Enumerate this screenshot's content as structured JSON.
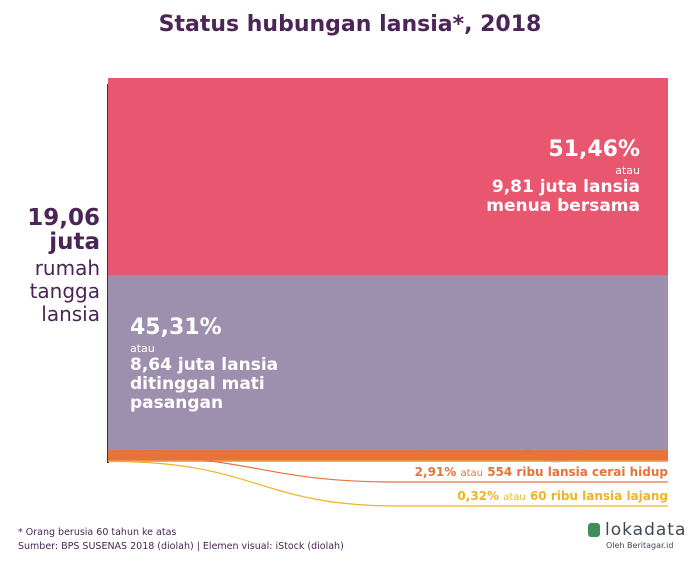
{
  "chart_data": {
    "type": "stack",
    "title": "Status hubungan lansia*, 2018",
    "total_lines": [
      "19,06",
      "juta"
    ],
    "total_text_lines": [
      "rumah",
      "tangga",
      "lansia"
    ],
    "connector": "atau",
    "series": [
      {
        "name": "9,81 juta lansia menua bersama",
        "values": [
          51.46
        ],
        "value_labels": [
          "51,46%"
        ],
        "color": "#e9566f"
      },
      {
        "name": "8,64 juta lansia ditinggal mati pasangan",
        "values": [
          45.31
        ],
        "value_labels": [
          "45,31%"
        ],
        "color": "#9d8fae"
      },
      {
        "name": "554 ribu lansia cerai hidup",
        "values": [
          2.91
        ],
        "value_labels": [
          "2,91%"
        ],
        "color": "#e5733a"
      },
      {
        "name": "60 ribu lansia lajang",
        "values": [
          0.32
        ],
        "value_labels": [
          "0,32%"
        ],
        "color": "#f0b323"
      }
    ],
    "notes": [
      "* Orang berusia 60 tahun ke atas",
      "Sumber: BPS SUSENAS 2018 (diolah) | Elemen visual: iStock (diolah)"
    ],
    "brand": "lokadata",
    "brand_sub": "Oleh Beritagar.id"
  }
}
